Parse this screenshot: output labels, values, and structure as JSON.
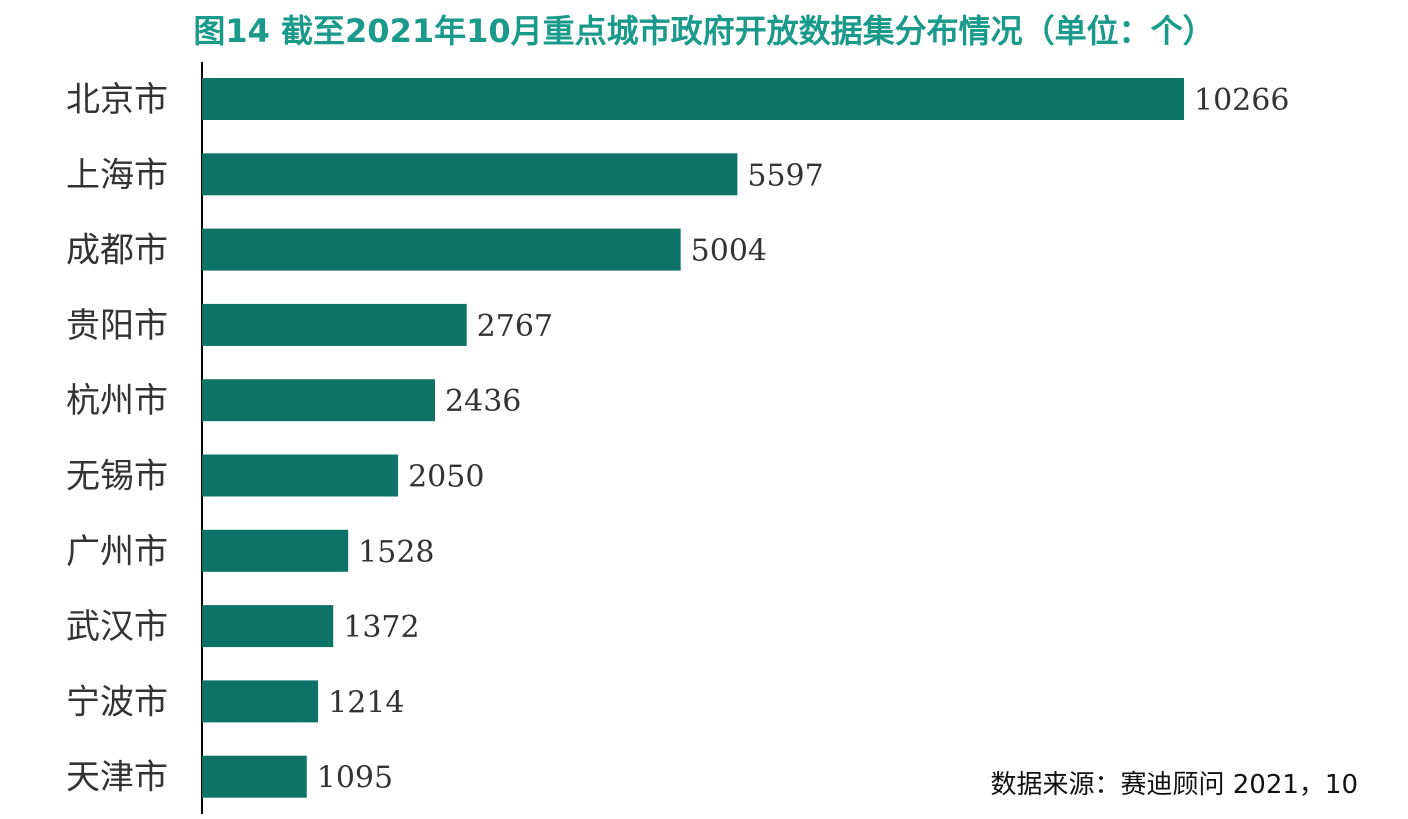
{
  "chart_data": {
    "type": "bar",
    "orientation": "horizontal",
    "title": "图14  截至2021年10月重点城市政府开放数据集分布情况（单位：个）",
    "categories": [
      "北京市",
      "上海市",
      "成都市",
      "贵阳市",
      "杭州市",
      "无锡市",
      "广州市",
      "武汉市",
      "宁波市",
      "天津市"
    ],
    "values": [
      10266,
      5597,
      5004,
      2767,
      2436,
      2050,
      1528,
      1372,
      1214,
      1095
    ],
    "xlim": [
      0,
      10266
    ],
    "grid": false,
    "bar_color": "#0d7366",
    "title_color": "#1a9a8a"
  },
  "source": "数据来源：赛迪顾问  2021，10"
}
